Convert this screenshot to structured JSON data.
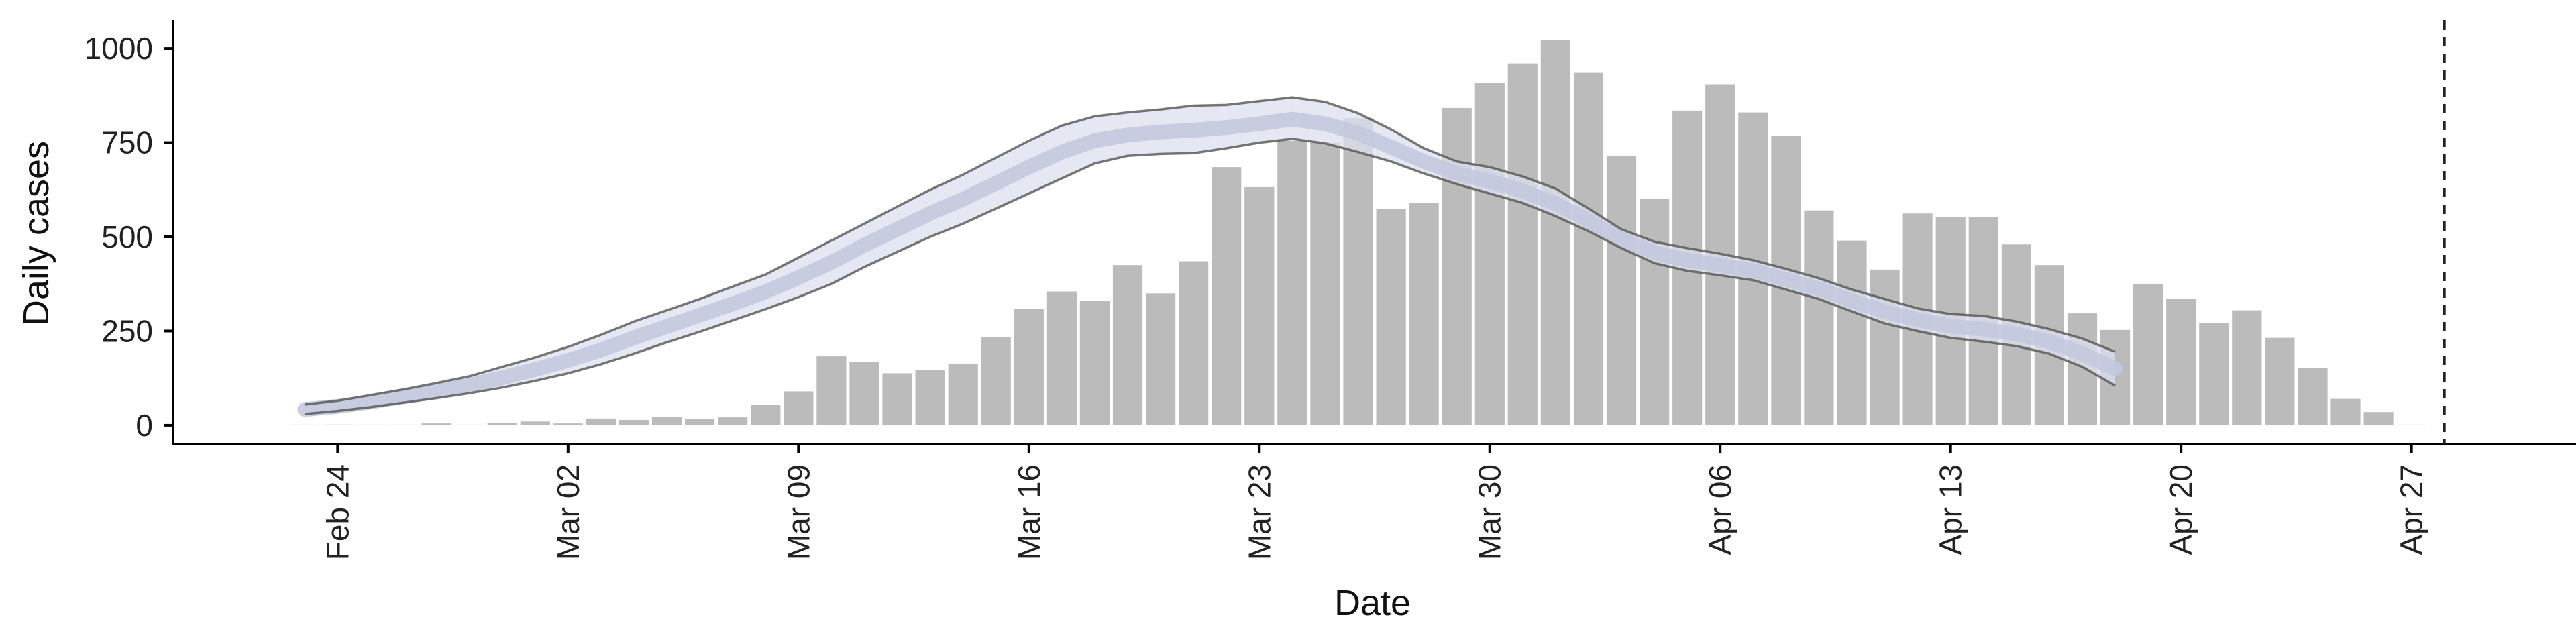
{
  "chart_data": {
    "type": "bar",
    "xlabel": "Date",
    "ylabel": "Daily cases",
    "x_tick_labels": [
      "Feb 24",
      "Mar 02",
      "Mar 09",
      "Mar 16",
      "Mar 23",
      "Mar 30",
      "Apr 06",
      "Apr 13",
      "Apr 20",
      "Apr 27"
    ],
    "x_tick_dates": [
      "2020-02-24",
      "2020-03-02",
      "2020-03-09",
      "2020-03-16",
      "2020-03-23",
      "2020-03-30",
      "2020-04-06",
      "2020-04-13",
      "2020-04-20",
      "2020-04-27"
    ],
    "y_ticks": [
      0,
      250,
      500,
      750,
      1000
    ],
    "y_tick_labels": [
      "0",
      "250",
      "500",
      "750",
      "1000"
    ],
    "ylim": [
      -50,
      1075
    ],
    "xlim": [
      "2020-02-19",
      "2020-05-02"
    ],
    "grid": false,
    "bars": {
      "dates": [
        "2020-02-22",
        "2020-02-23",
        "2020-02-24",
        "2020-02-25",
        "2020-02-26",
        "2020-02-27",
        "2020-02-28",
        "2020-02-29",
        "2020-03-01",
        "2020-03-02",
        "2020-03-03",
        "2020-03-04",
        "2020-03-05",
        "2020-03-06",
        "2020-03-07",
        "2020-03-08",
        "2020-03-09",
        "2020-03-10",
        "2020-03-11",
        "2020-03-12",
        "2020-03-13",
        "2020-03-14",
        "2020-03-15",
        "2020-03-16",
        "2020-03-17",
        "2020-03-18",
        "2020-03-19",
        "2020-03-20",
        "2020-03-21",
        "2020-03-22",
        "2020-03-23",
        "2020-03-24",
        "2020-03-25",
        "2020-03-26",
        "2020-03-27",
        "2020-03-28",
        "2020-03-29",
        "2020-03-30",
        "2020-03-31",
        "2020-04-01",
        "2020-04-02",
        "2020-04-03",
        "2020-04-04",
        "2020-04-05",
        "2020-04-06",
        "2020-04-07",
        "2020-04-08",
        "2020-04-09",
        "2020-04-10",
        "2020-04-11",
        "2020-04-12",
        "2020-04-13",
        "2020-04-14",
        "2020-04-15",
        "2020-04-16",
        "2020-04-17",
        "2020-04-18",
        "2020-04-19",
        "2020-04-20",
        "2020-04-21",
        "2020-04-22",
        "2020-04-23",
        "2020-04-24",
        "2020-04-25",
        "2020-04-26",
        "2020-04-27"
      ],
      "values": [
        1,
        0,
        2,
        0,
        0,
        5,
        0,
        7,
        10,
        5,
        18,
        14,
        22,
        16,
        21,
        55,
        90,
        183,
        168,
        138,
        146,
        163,
        233,
        308,
        355,
        330,
        425,
        350,
        435,
        685,
        632,
        755,
        750,
        815,
        573,
        590,
        842,
        908,
        960,
        1022,
        935,
        715,
        600,
        835,
        905,
        830,
        768,
        570,
        490,
        413,
        562,
        553,
        553,
        480,
        425,
        297,
        253,
        375,
        335,
        272,
        305,
        232,
        152,
        70,
        35,
        0
      ],
      "color": "#bbbbbb"
    },
    "estimate_band": {
      "dates": [
        "2020-02-23",
        "2020-02-24",
        "2020-02-25",
        "2020-02-26",
        "2020-02-27",
        "2020-02-28",
        "2020-02-29",
        "2020-03-01",
        "2020-03-02",
        "2020-03-03",
        "2020-03-04",
        "2020-03-05",
        "2020-03-06",
        "2020-03-07",
        "2020-03-08",
        "2020-03-09",
        "2020-03-10",
        "2020-03-11",
        "2020-03-12",
        "2020-03-13",
        "2020-03-14",
        "2020-03-15",
        "2020-03-16",
        "2020-03-17",
        "2020-03-18",
        "2020-03-19",
        "2020-03-20",
        "2020-03-21",
        "2020-03-22",
        "2020-03-23",
        "2020-03-24",
        "2020-03-25",
        "2020-03-26",
        "2020-03-27",
        "2020-03-28",
        "2020-03-29",
        "2020-03-30",
        "2020-03-31",
        "2020-04-01",
        "2020-04-02",
        "2020-04-03",
        "2020-04-04",
        "2020-04-05",
        "2020-04-06",
        "2020-04-07",
        "2020-04-08",
        "2020-04-09",
        "2020-04-10",
        "2020-04-11",
        "2020-04-12",
        "2020-04-13",
        "2020-04-14",
        "2020-04-15",
        "2020-04-16",
        "2020-04-17",
        "2020-04-18"
      ],
      "upper": [
        55,
        65,
        80,
        95,
        112,
        130,
        155,
        180,
        208,
        240,
        275,
        305,
        335,
        368,
        400,
        445,
        490,
        535,
        580,
        625,
        665,
        710,
        755,
        795,
        820,
        830,
        838,
        848,
        850,
        860,
        870,
        858,
        828,
        785,
        735,
        700,
        685,
        660,
        628,
        575,
        520,
        487,
        470,
        455,
        438,
        415,
        390,
        360,
        335,
        310,
        295,
        290,
        275,
        255,
        230,
        195
      ],
      "lower": [
        30,
        38,
        48,
        60,
        72,
        85,
        100,
        118,
        138,
        162,
        190,
        220,
        248,
        278,
        308,
        340,
        375,
        420,
        460,
        500,
        535,
        575,
        615,
        655,
        695,
        715,
        720,
        722,
        735,
        750,
        760,
        748,
        725,
        700,
        668,
        640,
        615,
        590,
        555,
        515,
        470,
        430,
        410,
        398,
        385,
        360,
        335,
        302,
        270,
        250,
        232,
        222,
        210,
        190,
        155,
        105
      ],
      "median": [
        42,
        50,
        62,
        76,
        90,
        106,
        126,
        148,
        172,
        200,
        232,
        262,
        292,
        322,
        354,
        392,
        432,
        478,
        520,
        562,
        600,
        642,
        685,
        725,
        755,
        770,
        778,
        783,
        790,
        800,
        812,
        800,
        775,
        738,
        700,
        668,
        648,
        622,
        588,
        543,
        494,
        458,
        438,
        425,
        410,
        387,
        362,
        330,
        302,
        280,
        263,
        255,
        242,
        222,
        190,
        150
      ],
      "band_color": "#dcdfee",
      "median_color": "#c3c9df",
      "outline_color": "#555555"
    },
    "vertical_dashed_line": {
      "date": "2020-04-28",
      "color": "#222222"
    }
  }
}
